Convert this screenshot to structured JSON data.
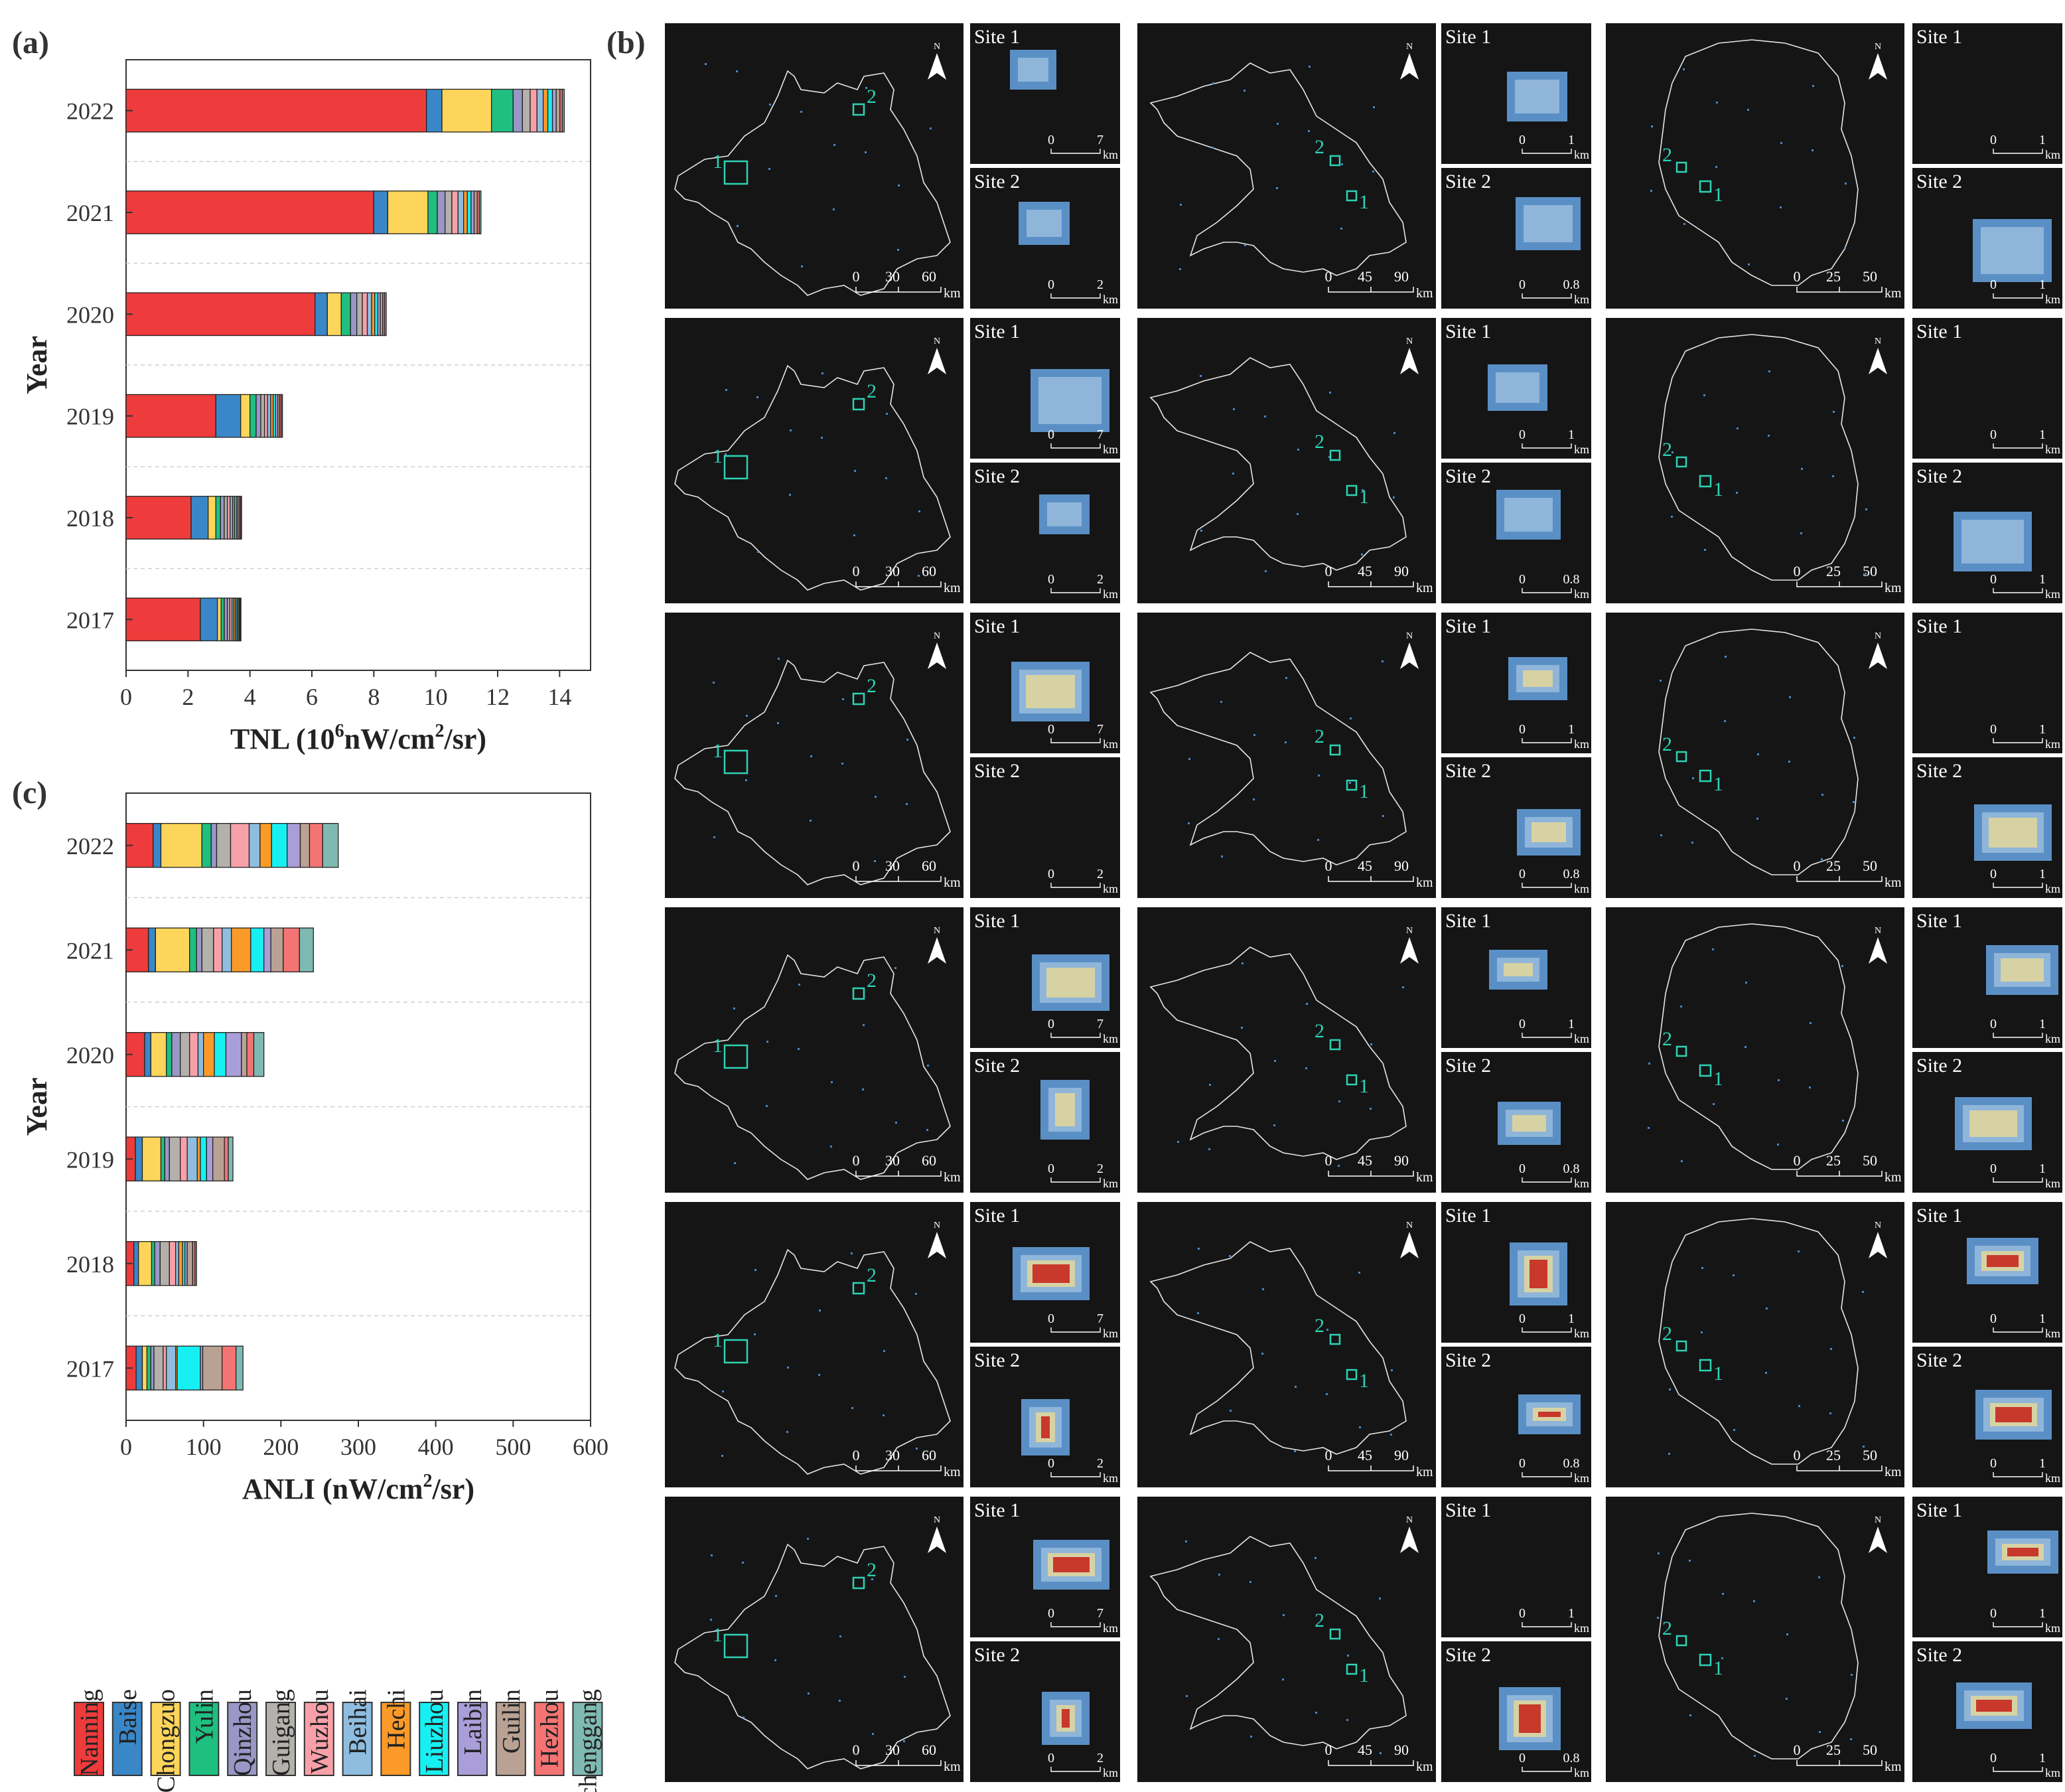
{
  "panels": {
    "a": "(a)",
    "b": "(b)",
    "c": "(c)"
  },
  "colors": {
    "Nanning": "#ee3b3b",
    "Baise": "#3a87c8",
    "Chongzuo": "#fdd55a",
    "Yulin": "#1fbf80",
    "Qinzhou": "#9a96c6",
    "Guigang": "#b4b0ac",
    "Wuzhou": "#f8a0a8",
    "Beihai": "#8ebde0",
    "Hechi": "#fb9a29",
    "Liuzhou": "#17f0f2",
    "Laibin": "#aa9ed8",
    "Guilin": "#b9a293",
    "Hezhou": "#f47474",
    "Fangchenggang": "#7fbab2"
  },
  "chart_data": [
    {
      "id": "a",
      "type": "bar",
      "orientation": "horizontal",
      "stacked": true,
      "categories": [
        "2022",
        "2021",
        "2020",
        "2019",
        "2018",
        "2017"
      ],
      "xlabel": "TNL (10",
      "xlabel_sup": "6",
      "xlabel_rest": "nW/cm",
      "xlabel_sup2": "2",
      "xlabel_end": "/sr)",
      "ylabel": "Year",
      "xlim": [
        0,
        15
      ],
      "xticks": [
        0,
        2,
        4,
        6,
        8,
        10,
        12,
        14
      ],
      "series": [
        {
          "name": "Nanning",
          "values": [
            9.7,
            8.0,
            6.1,
            2.9,
            2.1,
            2.4
          ]
        },
        {
          "name": "Baise",
          "values": [
            0.5,
            0.45,
            0.4,
            0.8,
            0.55,
            0.55
          ]
        },
        {
          "name": "Chongzuo",
          "values": [
            1.6,
            1.3,
            0.45,
            0.3,
            0.25,
            0.12
          ]
        },
        {
          "name": "Yulin",
          "values": [
            0.7,
            0.3,
            0.3,
            0.2,
            0.15,
            0.1
          ]
        },
        {
          "name": "Qinzhou",
          "values": [
            0.3,
            0.25,
            0.2,
            0.15,
            0.12,
            0.1
          ]
        },
        {
          "name": "Guigang",
          "values": [
            0.25,
            0.22,
            0.18,
            0.12,
            0.1,
            0.08
          ]
        },
        {
          "name": "Wuzhou",
          "values": [
            0.22,
            0.2,
            0.16,
            0.1,
            0.09,
            0.07
          ]
        },
        {
          "name": "Beihai",
          "values": [
            0.2,
            0.18,
            0.14,
            0.1,
            0.08,
            0.06
          ]
        },
        {
          "name": "Hechi",
          "values": [
            0.15,
            0.12,
            0.1,
            0.08,
            0.06,
            0.05
          ]
        },
        {
          "name": "Liuzhou",
          "values": [
            0.15,
            0.12,
            0.1,
            0.08,
            0.06,
            0.05
          ]
        },
        {
          "name": "Laibin",
          "values": [
            0.12,
            0.1,
            0.08,
            0.07,
            0.05,
            0.04
          ]
        },
        {
          "name": "Guilin",
          "values": [
            0.12,
            0.1,
            0.08,
            0.06,
            0.05,
            0.04
          ]
        },
        {
          "name": "Hezhou",
          "values": [
            0.08,
            0.07,
            0.06,
            0.05,
            0.04,
            0.03
          ]
        },
        {
          "name": "Fangchenggang",
          "values": [
            0.06,
            0.05,
            0.05,
            0.04,
            0.03,
            0.02
          ]
        }
      ]
    },
    {
      "id": "c",
      "type": "bar",
      "orientation": "horizontal",
      "stacked": true,
      "categories": [
        "2022",
        "2021",
        "2020",
        "2019",
        "2018",
        "2017"
      ],
      "xlabel": "ANLI (nW/cm",
      "xlabel_sup": "2",
      "xlabel_rest": "/sr)",
      "ylabel": "Year",
      "xlim": [
        0,
        600
      ],
      "xticks": [
        0,
        100,
        200,
        300,
        400,
        500,
        600
      ],
      "series": [
        {
          "name": "Nanning",
          "values": [
            35,
            29,
            24,
            12,
            10,
            13
          ]
        },
        {
          "name": "Baise",
          "values": [
            10,
            9,
            8,
            9,
            6,
            8
          ]
        },
        {
          "name": "Chongzuo",
          "values": [
            53,
            44,
            20,
            24,
            17,
            6
          ]
        },
        {
          "name": "Yulin",
          "values": [
            12,
            9,
            7,
            5,
            4,
            5
          ]
        },
        {
          "name": "Qinzhou",
          "values": [
            7,
            7,
            11,
            6,
            7,
            4
          ]
        },
        {
          "name": "Guigang",
          "values": [
            18,
            15,
            12,
            14,
            12,
            12
          ]
        },
        {
          "name": "Wuzhou",
          "values": [
            24,
            11,
            11,
            9,
            8,
            4
          ]
        },
        {
          "name": "Beihai",
          "values": [
            14,
            12,
            7,
            13,
            4,
            12
          ]
        },
        {
          "name": "Hechi",
          "values": [
            15,
            25,
            14,
            4,
            5,
            2
          ]
        },
        {
          "name": "Liuzhou",
          "values": [
            20,
            17,
            15,
            8,
            3,
            30
          ]
        },
        {
          "name": "Laibin",
          "values": [
            17,
            9,
            20,
            8,
            3,
            3
          ]
        },
        {
          "name": "Guilin",
          "values": [
            12,
            16,
            7,
            15,
            7,
            25
          ]
        },
        {
          "name": "Hezhou",
          "values": [
            17,
            21,
            9,
            5,
            3,
            18
          ]
        },
        {
          "name": "Fangchenggang",
          "values": [
            20,
            18,
            13,
            6,
            2,
            9
          ]
        }
      ]
    }
  ],
  "legend": [
    "Nanning",
    "Baise",
    "Chongzuo",
    "Yulin",
    "Qinzhou",
    "Guigang",
    "Wuzhou",
    "Beihai",
    "Hechi",
    "Liuzhou",
    "Laibin",
    "Guilin",
    "Hezhou",
    "Fangchenggang"
  ],
  "maps": {
    "north_label": "N",
    "km": "km",
    "site1": "Site 1",
    "site2": "Site 2",
    "marker1": "1",
    "marker2": "2",
    "columns": [
      {
        "main_scale": [
          "0",
          "30",
          "60"
        ],
        "site1_scale": [
          "0",
          "7"
        ],
        "site2_scale": [
          "0",
          "2"
        ]
      },
      {
        "main_scale": [
          "0",
          "45",
          "90"
        ],
        "site1_scale": [
          "0",
          "1"
        ],
        "site2_scale": [
          "0",
          "0.8"
        ]
      },
      {
        "main_scale": [
          "0",
          "25",
          "50"
        ],
        "site1_scale": [
          "0",
          "1"
        ],
        "site2_scale": [
          "0",
          "1"
        ]
      }
    ]
  }
}
